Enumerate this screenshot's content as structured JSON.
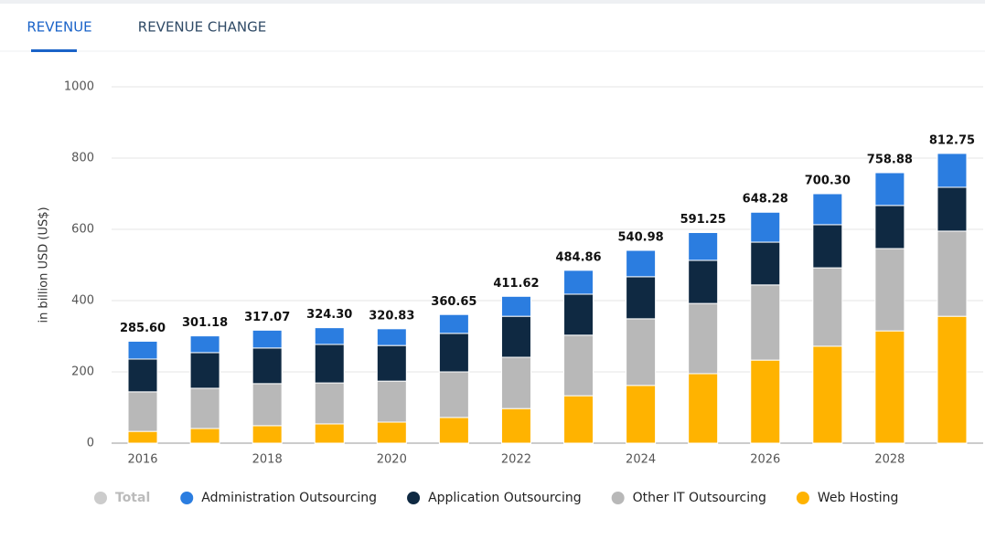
{
  "tabs": [
    "REVENUE",
    "REVENUE CHANGE"
  ],
  "chart_data": {
    "type": "stacked-bar",
    "y_label": "in billion USD (US$)",
    "categories": [
      "2016",
      null,
      "2018",
      null,
      "2020",
      null,
      "2022",
      null,
      "2024",
      null,
      "2026",
      null,
      "2028",
      null
    ],
    "ylim": [
      0,
      1000
    ],
    "yticks": [
      0,
      200,
      400,
      600,
      800,
      1000
    ],
    "grid": true,
    "legend": "bottom",
    "series": [
      {
        "name": "Total",
        "color": "#cccccc",
        "display": "labels",
        "values": [
          285.6,
          301.18,
          317.07,
          324.3,
          320.83,
          360.65,
          411.62,
          484.86,
          540.98,
          591.25,
          648.28,
          700.3,
          758.88,
          812.75
        ],
        "value_labels": [
          "285.60",
          "301.18",
          "317.07",
          "324.30",
          "320.83",
          "360.65",
          "411.62",
          "484.86",
          "540.98",
          "591.25",
          "648.28",
          "700.30",
          "758.88",
          "812.75"
        ]
      },
      {
        "name": "Administration Outsourcing",
        "color": "#2b7de0",
        "values": [
          50,
          47,
          50,
          47,
          47,
          53,
          56,
          67,
          74,
          78,
          84,
          87,
          92,
          95
        ]
      },
      {
        "name": "Application Outsourcing",
        "color": "#0f2942",
        "values": [
          92,
          100,
          100,
          108,
          100,
          108,
          115,
          115,
          118,
          121,
          120,
          121,
          121,
          123
        ]
      },
      {
        "name": "Other IT Outsourcing",
        "color": "#b8b8b8",
        "values": [
          111,
          113,
          118,
          115,
          115,
          128,
          144,
          170,
          187,
          197,
          211,
          220,
          231,
          239
        ]
      },
      {
        "name": "Web Hosting",
        "color": "#ffb300",
        "values": [
          33,
          41,
          49,
          54,
          59,
          72,
          97,
          133,
          162,
          195,
          233,
          272,
          315,
          356
        ]
      }
    ]
  }
}
